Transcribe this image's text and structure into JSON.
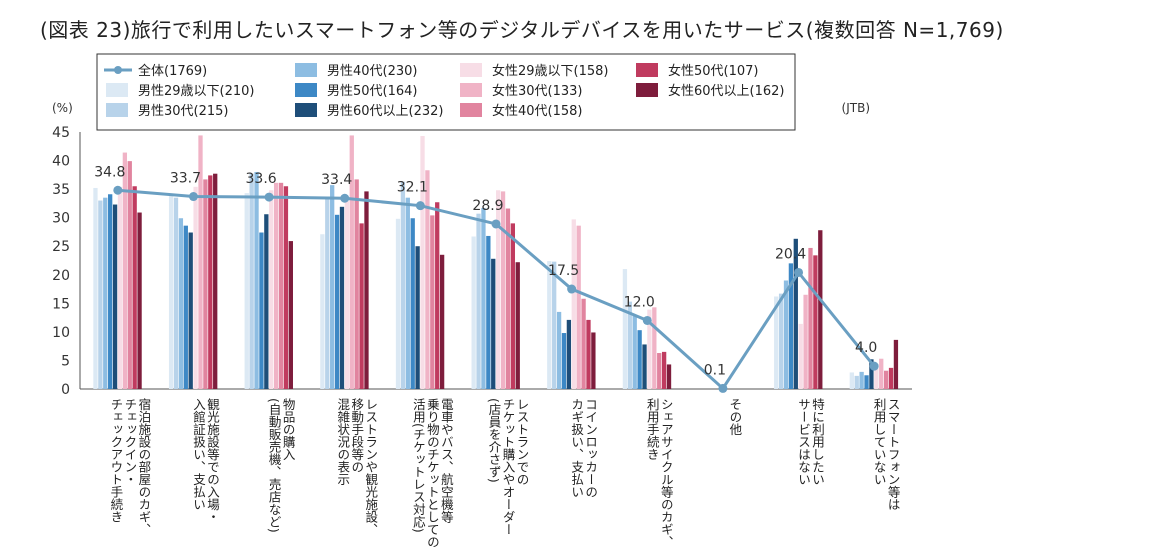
{
  "chart_data": {
    "type": "bar",
    "title": "(図表 23)旅行で利用したいスマートフォン等のデジタルデバイスを用いたサービス(複数回答 N=1,769)",
    "y_unit": "(%)",
    "source": "(JTB)",
    "ylim": [
      0,
      45
    ],
    "yticks": [
      0,
      5,
      10,
      15,
      20,
      25,
      30,
      35,
      40,
      45
    ],
    "legend_position": "top-left",
    "categories": [
      "宿泊施設の部屋のカギ、チェックイン・チェックアウト手続き",
      "観光施設等での入場・入館証扱い、支払い",
      "物品の購入(自動販売機、売店など)",
      "レストランや観光施設、移動手段等の混雑状況の表示",
      "電車やバス、航空機等乗り物のチケットとしての活用(チケットレス対応)",
      "レストランでのチケット購入やオーダー(店員を介さず)",
      "コインロッカーのカギ扱い、支払い",
      "シェアサイクル等のカギ、利用手続き",
      "その他",
      "特に利用したいサービスはない",
      "スマートフォン等は利用していない"
    ],
    "category_lines": [
      [
        "宿泊施設の部屋のカギ、",
        "チェックイン・",
        "チェックアウト手続き"
      ],
      [
        "観光施設等での入場・",
        "入館証扱い、支払い"
      ],
      [
        "物品の購入",
        "(自動販売機、売店など)"
      ],
      [
        "レストランや観光施設、",
        "移動手段等の",
        "混雑状況の表示"
      ],
      [
        "電車やバス、航空機等",
        "乗り物のチケットとしての",
        "活用(チケットレス対応)"
      ],
      [
        "レストランでの",
        "チケット購入やオーダー",
        "(店員を介さず)"
      ],
      [
        "コインロッカーの",
        "カギ扱い、支払い"
      ],
      [
        "シェアサイクル等のカギ、",
        "利用手続き"
      ],
      [
        "その他"
      ],
      [
        "特に利用したい",
        "サービスはない"
      ],
      [
        "スマートフォン等は",
        "利用していない"
      ]
    ],
    "line_series": {
      "name": "全体(1769)",
      "color": "#6a9fc2",
      "values": [
        34.8,
        33.7,
        33.6,
        33.4,
        32.1,
        28.9,
        17.5,
        12.0,
        0.1,
        20.4,
        4.0
      ],
      "labels": [
        "34.8",
        "33.7",
        "33.6",
        "33.4",
        "32.1",
        "28.9",
        "17.5",
        "12.0",
        "0.1",
        "20.4",
        "4.0"
      ]
    },
    "series": [
      {
        "name": "男性29歳以下(210)",
        "color": "#dce9f4",
        "values": [
          35.2,
          33.8,
          34.3,
          27.1,
          29.8,
          26.7,
          22.4,
          21.0,
          0.0,
          16.2,
          2.9
        ]
      },
      {
        "name": "男性30代(215)",
        "color": "#b8d3ea",
        "values": [
          33.0,
          33.5,
          37.7,
          33.5,
          36.3,
          30.7,
          22.3,
          15.3,
          0.0,
          16.7,
          2.3
        ]
      },
      {
        "name": "男性40代(230)",
        "color": "#8dbde2",
        "values": [
          33.5,
          29.9,
          38.0,
          35.7,
          33.5,
          31.7,
          13.5,
          13.0,
          0.0,
          19.0,
          3.0
        ]
      },
      {
        "name": "男性50代(164)",
        "color": "#3d88c5",
        "values": [
          34.1,
          28.6,
          27.4,
          30.5,
          29.9,
          26.8,
          9.8,
          10.3,
          0.0,
          22.0,
          2.4
        ]
      },
      {
        "name": "男性60代以上(232)",
        "color": "#1e4e79",
        "values": [
          32.3,
          27.4,
          30.6,
          31.9,
          25.0,
          22.8,
          12.1,
          7.8,
          0.0,
          26.3,
          5.2
        ]
      },
      {
        "name": "女性29歳以下(158)",
        "color": "#f7dde6",
        "values": [
          35.4,
          35.4,
          34.8,
          32.9,
          44.3,
          34.8,
          29.7,
          13.9,
          0.0,
          11.4,
          4.4
        ]
      },
      {
        "name": "女性30代(133)",
        "color": "#f0b3c6",
        "values": [
          41.4,
          44.4,
          36.1,
          44.4,
          38.3,
          34.6,
          28.6,
          14.3,
          0.0,
          16.5,
          5.3
        ]
      },
      {
        "name": "女性40代(158)",
        "color": "#e1849f",
        "values": [
          39.9,
          36.7,
          36.1,
          36.7,
          30.4,
          31.6,
          15.8,
          6.3,
          0.0,
          24.7,
          3.2
        ]
      },
      {
        "name": "女性50代(107)",
        "color": "#c03b5f",
        "values": [
          35.5,
          37.4,
          35.5,
          29.0,
          32.7,
          29.0,
          12.1,
          6.5,
          0.0,
          23.4,
          3.7
        ]
      },
      {
        "name": "女性60代以上(162)",
        "color": "#7e1d3c",
        "values": [
          30.9,
          37.7,
          25.9,
          34.6,
          23.5,
          22.2,
          9.9,
          4.3,
          0.0,
          27.8,
          8.6
        ]
      }
    ]
  }
}
